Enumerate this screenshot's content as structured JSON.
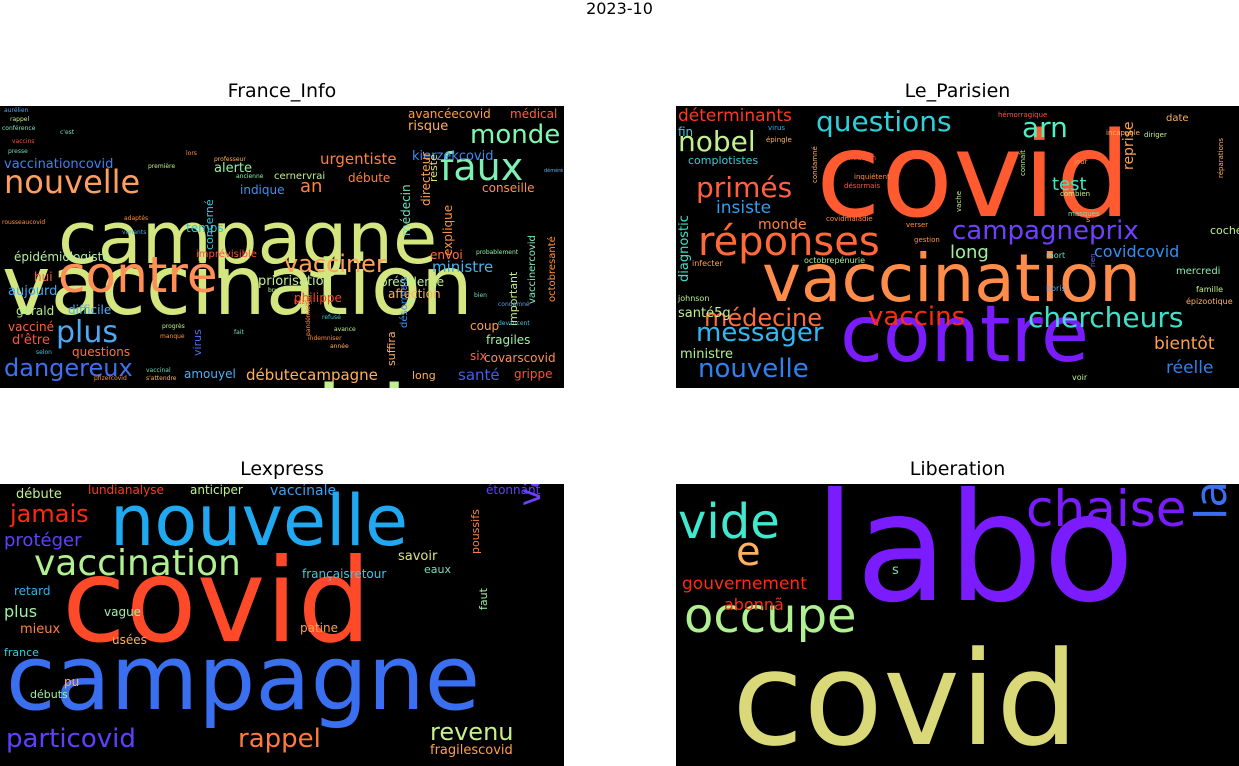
{
  "suptitle": "2023-10",
  "colors": {
    "background": "#000000",
    "figure": "#ffffff"
  },
  "chart_data": [
    {
      "type": "wordcloud",
      "title": "France_Info",
      "words": [
        {
          "text": "vaccination",
          "color": "#d4e67f",
          "weight": 100
        },
        {
          "text": "covid",
          "color": "#c1f08f",
          "weight": 88
        },
        {
          "text": "campagne",
          "color": "#d4e67f",
          "weight": 72
        },
        {
          "text": "contre",
          "color": "#ff8f57",
          "weight": 52
        },
        {
          "text": "faux",
          "color": "#7ff0b3",
          "weight": 40
        },
        {
          "text": "nouvelle",
          "color": "#ff9f5f",
          "weight": 38
        },
        {
          "text": "monde",
          "color": "#80f8b0",
          "weight": 30
        },
        {
          "text": "plus",
          "color": "#4fa8f2",
          "weight": 32
        },
        {
          "text": "vacciner",
          "color": "#ffa05a",
          "weight": 30
        },
        {
          "text": "dangereux",
          "color": "#4070f0",
          "weight": 28
        },
        {
          "text": "kierzekcovid",
          "color": "#3f8cf5",
          "weight": 14
        },
        {
          "text": "urgentiste",
          "color": "#ff8040",
          "weight": 14
        },
        {
          "text": "ministre",
          "color": "#40b4f0",
          "weight": 14
        },
        {
          "text": "santé",
          "color": "#4060f0",
          "weight": 14
        },
        {
          "text": "débutecampagne",
          "color": "#ffb060",
          "weight": 13
        },
        {
          "text": "épidémiologiste",
          "color": "#b0f0a0",
          "weight": 12
        },
        {
          "text": "priorisation",
          "color": "#c0ec90",
          "weight": 12
        },
        {
          "text": "conseille",
          "color": "#ff9050",
          "weight": 12
        },
        {
          "text": "avancéecovid",
          "color": "#ff9f40",
          "weight": 12
        },
        {
          "text": "médical",
          "color": "#ff6040",
          "weight": 11
        },
        {
          "text": "alerte",
          "color": "#90f0a0",
          "weight": 11
        },
        {
          "text": "an",
          "color": "#ff8040",
          "weight": 13
        },
        {
          "text": "temps",
          "color": "#30c8d0",
          "weight": 10
        },
        {
          "text": "indique",
          "color": "#4090f0",
          "weight": 10
        },
        {
          "text": "cernervrai",
          "color": "#c0ec90",
          "weight": 10
        },
        {
          "text": "vaccinationcovid",
          "color": "#4080f0",
          "weight": 10
        },
        {
          "text": "risque",
          "color": "#ffb060",
          "weight": 11
        },
        {
          "text": "débute",
          "color": "#ff8040",
          "weight": 10
        },
        {
          "text": "aujourd",
          "color": "#40a8f0",
          "weight": 10
        },
        {
          "text": "difficile",
          "color": "#50b0f0",
          "weight": 10
        },
        {
          "text": "gérald",
          "color": "#b0f090",
          "weight": 10
        },
        {
          "text": "vacciné",
          "color": "#ff6040",
          "weight": 9
        },
        {
          "text": "d'être",
          "color": "#ff5040",
          "weight": 10
        },
        {
          "text": "questions",
          "color": "#ff7040",
          "weight": 10
        },
        {
          "text": "hui",
          "color": "#ff6040",
          "weight": 10
        },
        {
          "text": "amouyel",
          "color": "#50b0f0",
          "weight": 10
        },
        {
          "text": "philippe",
          "color": "#ff4020",
          "weight": 11
        },
        {
          "text": "affection",
          "color": "#ffb060",
          "weight": 11
        },
        {
          "text": "présidente",
          "color": "#c0f090",
          "weight": 10
        },
        {
          "text": "envoi",
          "color": "#ff7040",
          "weight": 11
        },
        {
          "text": "imprévisible",
          "color": "#ff5040",
          "weight": 9
        },
        {
          "text": "coup",
          "color": "#ffa050",
          "weight": 10
        },
        {
          "text": "six",
          "color": "#ff6040",
          "weight": 10
        },
        {
          "text": "fragiles",
          "color": "#a0f0a0",
          "weight": 10
        },
        {
          "text": "covarscovid",
          "color": "#ff9050",
          "weight": 10
        },
        {
          "text": "grippe",
          "color": "#ff5040",
          "weight": 10
        },
        {
          "text": "long",
          "color": "#ffb060",
          "weight": 9
        },
        {
          "text": "suffira",
          "color": "#ffb060",
          "weight": 9
        },
        {
          "text": "virus",
          "color": "#5070f0",
          "weight": 10
        },
        {
          "text": "désormais",
          "color": "#4090f0",
          "weight": 8
        },
        {
          "text": "médecin",
          "color": "#70e0c0",
          "weight": 9
        },
        {
          "text": "directeur",
          "color": "#ffa050",
          "weight": 9
        },
        {
          "text": "reste",
          "color": "#e0e080",
          "weight": 9
        },
        {
          "text": "explique",
          "color": "#ff9040",
          "weight": 9
        },
        {
          "text": "important",
          "color": "#c0f090",
          "weight": 8
        },
        {
          "text": "vaccinercovid",
          "color": "#80e8c0",
          "weight": 8
        },
        {
          "text": "octobresanté",
          "color": "#ff9040",
          "weight": 8
        },
        {
          "text": "concerné",
          "color": "#40c8e0",
          "weight": 8
        },
        {
          "text": "aurélien",
          "color": "#60a0f0",
          "weight": 4
        },
        {
          "text": "rappel",
          "color": "#c0f090",
          "weight": 4
        },
        {
          "text": "vaccins",
          "color": "#ff5040",
          "weight": 4
        },
        {
          "text": "conférence",
          "color": "#80e0c0",
          "weight": 4
        },
        {
          "text": "presse",
          "color": "#70e0c0",
          "weight": 4
        },
        {
          "text": "c'est",
          "color": "#70e0c0",
          "weight": 4
        },
        {
          "text": "déméré",
          "color": "#60b0f0",
          "weight": 4
        },
        {
          "text": "professeur",
          "color": "#ffb060",
          "weight": 4
        },
        {
          "text": "variants",
          "color": "#40a8e0",
          "weight": 4
        },
        {
          "text": "adaptés",
          "color": "#ff9040",
          "weight": 4
        },
        {
          "text": "probablement",
          "color": "#90f0a0",
          "weight": 4
        },
        {
          "text": "bien",
          "color": "#70e0c0",
          "weight": 4
        },
        {
          "text": "refusé",
          "color": "#40c8e0",
          "weight": 4
        },
        {
          "text": "avance",
          "color": "#c0f090",
          "weight": 4
        },
        {
          "text": "indemniser",
          "color": "#ff9040",
          "weight": 4
        },
        {
          "text": "année",
          "color": "#ffb060",
          "weight": 4
        },
        {
          "text": "progrès",
          "color": "#c0f090",
          "weight": 4
        },
        {
          "text": "manque",
          "color": "#ff9040",
          "weight": 4
        },
        {
          "text": "fait",
          "color": "#70e0c0",
          "weight": 4
        },
        {
          "text": "selon",
          "color": "#40c8e0",
          "weight": 4
        },
        {
          "text": "vaccinal",
          "color": "#70e0c0",
          "weight": 4
        },
        {
          "text": "pfizercovid",
          "color": "#ff9040",
          "weight": 4
        },
        {
          "text": "s'attendre",
          "color": "#ffb060",
          "weight": 4
        },
        {
          "text": "buzyn",
          "color": "#ff5040",
          "weight": 4
        },
        {
          "text": "lors",
          "color": "#ff9040",
          "weight": 4
        },
        {
          "text": "première",
          "color": "#c0f090",
          "weight": 4
        },
        {
          "text": "ancienne",
          "color": "#90f0a0",
          "weight": 4
        },
        {
          "text": "bruno",
          "color": "#c0f090",
          "weight": 4
        },
        {
          "text": "rousseaucovid",
          "color": "#ff9040",
          "weight": 4
        },
        {
          "text": "condamné",
          "color": "#60a0f0",
          "weight": 4
        },
        {
          "text": "devancent",
          "color": "#40c8e0",
          "weight": 4
        },
        {
          "text": "pandémievraî",
          "color": "#ff9040",
          "weight": 4
        }
      ]
    },
    {
      "type": "wordcloud",
      "title": "Le_Parisien",
      "words": [
        {
          "text": "covid",
          "color": "#ff5a30",
          "weight": 100
        },
        {
          "text": "vaccination",
          "color": "#ff8c4a",
          "weight": 62
        },
        {
          "text": "contre",
          "color": "#7b1cff",
          "weight": 72
        },
        {
          "text": "réponses",
          "color": "#ff6a3a",
          "weight": 38
        },
        {
          "text": "questions",
          "color": "#30d0d8",
          "weight": 26
        },
        {
          "text": "primés",
          "color": "#ff6040",
          "weight": 24
        },
        {
          "text": "campagneprix",
          "color": "#7040ff",
          "weight": 24
        },
        {
          "text": "nobel",
          "color": "#c0f090",
          "weight": 24
        },
        {
          "text": "chercheurs",
          "color": "#40e0c8",
          "weight": 26
        },
        {
          "text": "messager",
          "color": "#30b8f0",
          "weight": 24
        },
        {
          "text": "médecine",
          "color": "#ff6a3a",
          "weight": 22
        },
        {
          "text": "vaccins",
          "color": "#ff2a10",
          "weight": 24
        },
        {
          "text": "nouvelle",
          "color": "#3080f0",
          "weight": 24
        },
        {
          "text": "arn",
          "color": "#50f0c0",
          "weight": 24
        },
        {
          "text": "test",
          "color": "#40e8c0",
          "weight": 15
        },
        {
          "text": "insiste",
          "color": "#30a0f0",
          "weight": 16
        },
        {
          "text": "long",
          "color": "#a0f0a0",
          "weight": 16
        },
        {
          "text": "covidcovid",
          "color": "#3090f0",
          "weight": 14
        },
        {
          "text": "bientôt",
          "color": "#ffa050",
          "weight": 15
        },
        {
          "text": "réelle",
          "color": "#3080f0",
          "weight": 14
        },
        {
          "text": "déterminants",
          "color": "#ff3a20",
          "weight": 14
        },
        {
          "text": "diagnostic",
          "color": "#40e0c8",
          "weight": 12
        },
        {
          "text": "reprise",
          "color": "#ffa050",
          "weight": 12
        },
        {
          "text": "monde",
          "color": "#ff8040",
          "weight": 12
        },
        {
          "text": "santé5g",
          "color": "#c0f090",
          "weight": 11
        },
        {
          "text": "ministre",
          "color": "#b0f090",
          "weight": 11
        },
        {
          "text": "fin",
          "color": "#40c8e0",
          "weight": 10
        },
        {
          "text": "complotistes",
          "color": "#40c8e0",
          "weight": 9
        },
        {
          "text": "coché",
          "color": "#c0f090",
          "weight": 10
        },
        {
          "text": "mercredi",
          "color": "#80f0b0",
          "weight": 9
        },
        {
          "text": "date",
          "color": "#ffb060",
          "weight": 9
        },
        {
          "text": "octobrepénurie",
          "color": "#a0f0a0",
          "weight": 7
        },
        {
          "text": "infecter",
          "color": "#ffa050",
          "weight": 7
        },
        {
          "text": "mort",
          "color": "#60e0c0",
          "weight": 7
        },
        {
          "text": "boris",
          "color": "#60a0f0",
          "weight": 7
        },
        {
          "text": "johnson",
          "color": "#c0f090",
          "weight": 6
        },
        {
          "text": "famille",
          "color": "#c0f090",
          "weight": 6
        },
        {
          "text": "épizootique",
          "color": "#ffb060",
          "weight": 6
        },
        {
          "text": "voir",
          "color": "#c0f090",
          "weight": 6
        },
        {
          "text": "hémorragique",
          "color": "#ff5040",
          "weight": 5
        },
        {
          "text": "virus",
          "color": "#40a8e0",
          "weight": 6
        },
        {
          "text": "épingle",
          "color": "#ffb060",
          "weight": 5
        },
        {
          "text": "médecin",
          "color": "#ff5040",
          "weight": 5
        },
        {
          "text": "désormais",
          "color": "#ff5040",
          "weight": 5
        },
        {
          "text": "inquiétent",
          "color": "#ff9040",
          "weight": 5
        },
        {
          "text": "condamné",
          "color": "#ffb060",
          "weight": 5
        },
        {
          "text": "covidmaladie",
          "color": "#ff9040",
          "weight": 5
        },
        {
          "text": "verser",
          "color": "#ff9040",
          "weight": 5
        },
        {
          "text": "gestion",
          "color": "#ff9040",
          "weight": 5
        },
        {
          "text": "vache",
          "color": "#c0f090",
          "weight": 5
        },
        {
          "text": "connaît",
          "color": "#c0f090",
          "weight": 5
        },
        {
          "text": "jour",
          "color": "#ff9040",
          "weight": 5
        },
        {
          "text": "combien",
          "color": "#c0f090",
          "weight": 5
        },
        {
          "text": "masques",
          "color": "#70e0c0",
          "weight": 5
        },
        {
          "text": "rien",
          "color": "#7060ff",
          "weight": 5
        },
        {
          "text": "diriger",
          "color": "#c0f090",
          "weight": 5
        },
        {
          "text": "réparations",
          "color": "#ffb060",
          "weight": 5
        },
        {
          "text": "incapable",
          "color": "#ffb060",
          "weight": 5
        },
        {
          "text": "s",
          "color": "#ffb060",
          "weight": 5
        }
      ]
    },
    {
      "type": "wordcloud",
      "title": "Lexpress",
      "words": [
        {
          "text": "covid",
          "color": "#ff4a2a",
          "weight": 100
        },
        {
          "text": "campagne",
          "color": "#3a70f0",
          "weight": 78
        },
        {
          "text": "nouvelle",
          "color": "#20a8f0",
          "weight": 70
        },
        {
          "text": "vaccination",
          "color": "#b0f090",
          "weight": 36
        },
        {
          "text": "vaccinal",
          "color": "#7040ff",
          "weight": 28
        },
        {
          "text": "particovid",
          "color": "#6040ff",
          "weight": 26
        },
        {
          "text": "rappel",
          "color": "#ff7a40",
          "weight": 26
        },
        {
          "text": "revenu",
          "color": "#c8f08a",
          "weight": 26
        },
        {
          "text": "jamais",
          "color": "#ff2a10",
          "weight": 24
        },
        {
          "text": "protéger",
          "color": "#6040ff",
          "weight": 17
        },
        {
          "text": "plus",
          "color": "#a0f0a0",
          "weight": 16
        },
        {
          "text": "vaccinale",
          "color": "#40a0f0",
          "weight": 13
        },
        {
          "text": "anticiper",
          "color": "#c0f090",
          "weight": 12
        },
        {
          "text": "lundianalyse",
          "color": "#ff3a20",
          "weight": 12
        },
        {
          "text": "débute",
          "color": "#c0f090",
          "weight": 12
        },
        {
          "text": "étonnant",
          "color": "#6040ff",
          "weight": 11
        },
        {
          "text": "savoir",
          "color": "#e0e080",
          "weight": 12
        },
        {
          "text": "eaux",
          "color": "#70e0c0",
          "weight": 10
        },
        {
          "text": "françaisretour",
          "color": "#40c8e0",
          "weight": 11
        },
        {
          "text": "retard",
          "color": "#30b0f0",
          "weight": 11
        },
        {
          "text": "mieux",
          "color": "#ff8040",
          "weight": 11
        },
        {
          "text": "vague",
          "color": "#a0f0a0",
          "weight": 10
        },
        {
          "text": "patine",
          "color": "#ffa050",
          "weight": 11
        },
        {
          "text": "usées",
          "color": "#ffb060",
          "weight": 11
        },
        {
          "text": "france",
          "color": "#40c8e0",
          "weight": 10
        },
        {
          "text": "pu",
          "color": "#ffb060",
          "weight": 11
        },
        {
          "text": "débuts",
          "color": "#a0f0a0",
          "weight": 10
        },
        {
          "text": "poussifs",
          "color": "#ff8040",
          "weight": 9
        },
        {
          "text": "faut",
          "color": "#a0f0a0",
          "weight": 9
        },
        {
          "text": "fragilescovid",
          "color": "#ffa050",
          "weight": 11
        }
      ]
    },
    {
      "type": "wordcloud",
      "title": "Liberation",
      "words": [
        {
          "text": "labo",
          "color": "#7b1cff",
          "weight": 100
        },
        {
          "text": "covid",
          "color": "#d9d97a",
          "weight": 100
        },
        {
          "text": "chaise",
          "color": "#7b1cff",
          "weight": 48
        },
        {
          "text": "vide",
          "color": "#40e8d0",
          "weight": 48
        },
        {
          "text": "occupe",
          "color": "#b0f090",
          "weight": 45
        },
        {
          "text": "laissã",
          "color": "#3a70f0",
          "weight": 40
        },
        {
          "text": "e",
          "color": "#ffb060",
          "weight": 40
        },
        {
          "text": "gouvernement",
          "color": "#ff2a10",
          "weight": 16
        },
        {
          "text": "abonnã",
          "color": "#ff2a10",
          "weight": 15
        },
        {
          "text": "s",
          "color": "#70e0c0",
          "weight": 13
        }
      ]
    }
  ]
}
